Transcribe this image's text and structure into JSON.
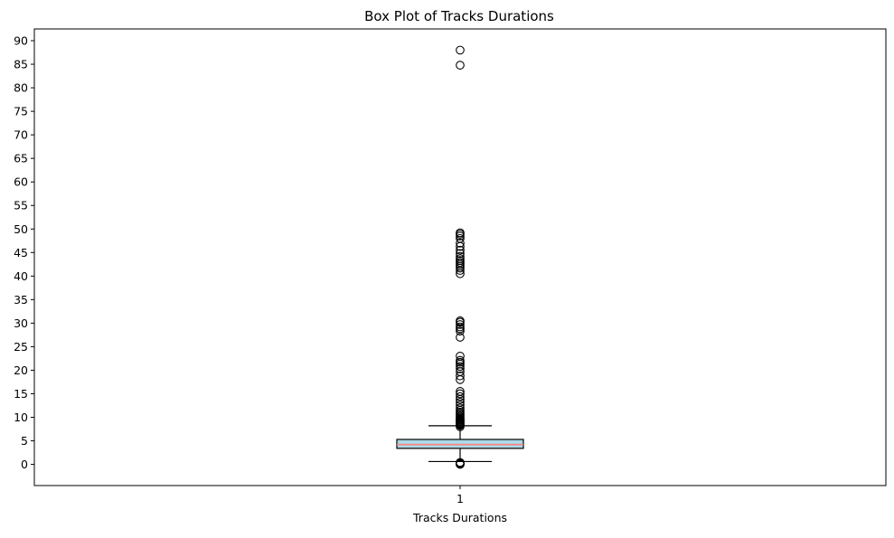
{
  "chart_data": {
    "type": "box",
    "title": "Box Plot of Tracks Durations",
    "xlabel": "Tracks Durations",
    "ylabel": "",
    "categories": [
      "1"
    ],
    "ylim": [
      -4.5,
      92.5
    ],
    "yticks": [
      0,
      5,
      10,
      15,
      20,
      25,
      30,
      35,
      40,
      45,
      50,
      55,
      60,
      65,
      70,
      75,
      80,
      85,
      90
    ],
    "grid": false,
    "series": [
      {
        "box": {
          "whisker_low": 0.6,
          "q1": 3.4,
          "median": 4.2,
          "q3": 5.3,
          "whisker_high": 8.2
        },
        "outliers": [
          0.0,
          0.05,
          0.1,
          0.15,
          0.2,
          0.3,
          0.4,
          8.0,
          8.3,
          8.5,
          8.7,
          8.9,
          9.1,
          9.3,
          9.5,
          9.7,
          9.9,
          10.2,
          10.5,
          10.8,
          11.1,
          11.5,
          12.0,
          12.6,
          13.2,
          13.8,
          14.4,
          15.0,
          15.5,
          18.0,
          18.8,
          19.7,
          20.3,
          20.8,
          21.3,
          21.7,
          22.1,
          23.0,
          27.0,
          28.3,
          28.8,
          29.2,
          29.7,
          30.2,
          30.5,
          40.5,
          41.2,
          41.7,
          42.1,
          42.5,
          42.9,
          43.3,
          43.7,
          44.2,
          44.8,
          45.5,
          46.3,
          47.0,
          48.0,
          48.5,
          48.9,
          49.2,
          84.8,
          88.0
        ]
      }
    ],
    "colors": {
      "box_fill": "#add8e6",
      "box_edge": "#000000",
      "median": "#ff7f7f",
      "outlier_edge": "#000000"
    }
  }
}
